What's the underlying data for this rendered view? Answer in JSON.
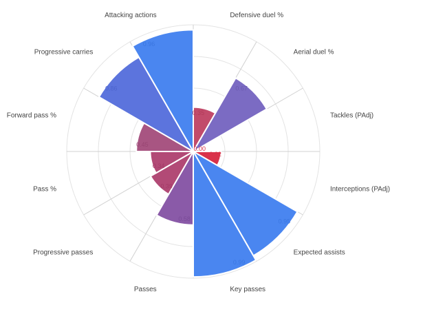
{
  "chart_data": {
    "type": "polar-bar",
    "categories": [
      "Defensive duel %",
      "Aerial duel %",
      "Tackles (PAdj)",
      "Interceptions (PAdj)",
      "Expected assists",
      "Key passes",
      "Passes",
      "Progressive passes",
      "Pass %",
      "Forward pass %",
      "Progressive carries",
      "Attacking actions"
    ],
    "values": [
      0.35,
      0.67,
      0.0,
      0.22,
      0.95,
      0.99,
      0.58,
      0.39,
      0.34,
      0.45,
      0.86,
      0.96
    ],
    "value_labels": [
      "0.35",
      "0.67",
      "0.00",
      "0.22",
      "0.95",
      "0.99",
      "0.58",
      "0.39",
      "0.34",
      "0.45",
      "0.86",
      "0.96"
    ],
    "colors": [
      "#c24b6b",
      "#7b6bc3",
      "#d9324a",
      "#d9324a",
      "#4a86f0",
      "#4a86f0",
      "#8a5aa8",
      "#b24a76",
      "#b24a76",
      "#a85582",
      "#5c74dd",
      "#4a86f0"
    ],
    "label_colors": [
      "#b23b5a",
      "#6a5ab0",
      "#d9324a",
      "#d9324a",
      "#3a76e0",
      "#3a76e0",
      "#7a4a98",
      "#a23a66",
      "#a23a66",
      "#984572",
      "#4c64cd",
      "#3a76e0"
    ],
    "rmax": 1.0,
    "gridlines": [
      0.25,
      0.5,
      0.75,
      1.0
    ],
    "legend": "none"
  }
}
